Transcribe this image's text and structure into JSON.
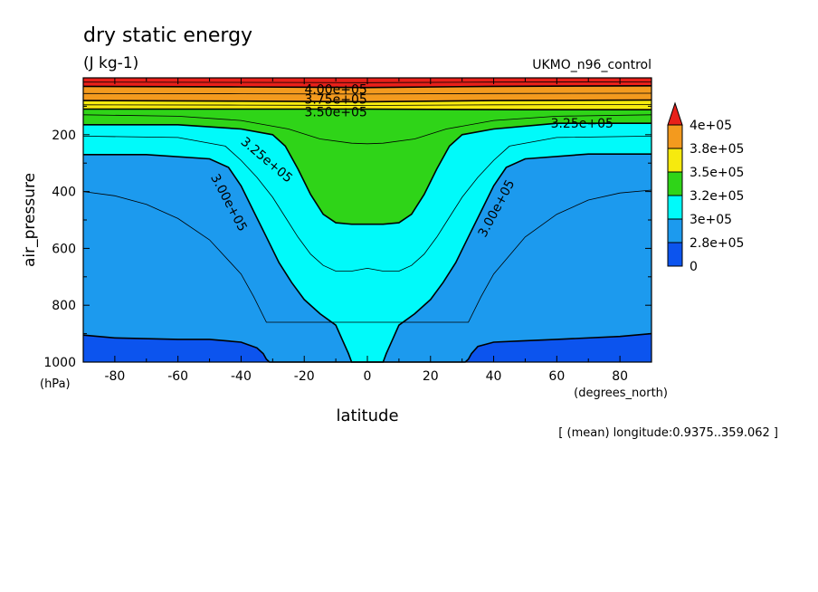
{
  "chart_data": {
    "type": "heatmap",
    "title": "dry static energy",
    "units": "(J kg-1)",
    "run_label": "UKMO_n96_control",
    "xlabel": "latitude",
    "x_units": "(degrees_north)",
    "ylabel": "air_pressure",
    "y_units": "(hPa)",
    "footer": "[ (mean) longitude:0.9375..359.062 ]",
    "xlim": [
      -90,
      90
    ],
    "ylim": [
      1000,
      0
    ],
    "y_inverted": true,
    "x_ticks": [
      -80,
      -60,
      -40,
      -20,
      0,
      20,
      40,
      60,
      80
    ],
    "y_ticks": [
      200,
      400,
      600,
      800,
      1000
    ],
    "colorbar": {
      "labels": [
        "4e+05",
        "3.8e+05",
        "3.5e+05",
        "3.2e+05",
        "3e+05",
        "2.8e+05",
        "0"
      ],
      "colors": [
        "#e8201a",
        "#f39a1e",
        "#f6ea0e",
        "#2fd418",
        "#00fafa",
        "#1c9aee",
        "#0c54ee"
      ]
    },
    "levels": [
      {
        "level": 275000,
        "color": "#1c9aee"
      },
      {
        "level": 300000,
        "color": "#00fafa"
      },
      {
        "level": 325000,
        "color": "#2fd418"
      },
      {
        "level": 350000,
        "color": "#f6ea0e"
      },
      {
        "level": 375000,
        "color": "#f39a1e"
      },
      {
        "level": 400000,
        "color": "#e8201a"
      }
    ],
    "contour_labels": [
      "4.00e+05",
      "3.75e+05",
      "3.50e+05",
      "3.25e+05",
      "3.25e+05",
      "3.00e+05",
      "3.00e+05"
    ],
    "level_boundaries": [
      {
        "level": 275000,
        "lat": [
          -90,
          -80,
          -60,
          -50,
          -40,
          -35,
          -33,
          -32,
          -31,
          31,
          32,
          33,
          35,
          40,
          50,
          60,
          80,
          90
        ],
        "p": [
          905,
          915,
          920,
          920,
          930,
          950,
          970,
          990,
          1000,
          1000,
          990,
          970,
          945,
          930,
          925,
          920,
          910,
          900
        ]
      },
      {
        "level": 300000,
        "lat": [
          -90,
          -70,
          -50,
          -44,
          -40,
          -36,
          -32,
          -28,
          -24,
          -20,
          -15,
          -10,
          -8,
          -6,
          -5,
          5,
          6,
          8,
          10,
          15,
          20,
          24,
          28,
          32,
          36,
          40,
          44,
          50,
          70,
          90
        ],
        "p": [
          270,
          270,
          285,
          315,
          380,
          470,
          560,
          650,
          720,
          780,
          830,
          870,
          920,
          970,
          1000,
          1000,
          970,
          920,
          870,
          830,
          780,
          720,
          650,
          560,
          470,
          380,
          315,
          285,
          268,
          268
        ]
      },
      {
        "level": 325000,
        "lat": [
          -90,
          -60,
          -40,
          -30,
          -26,
          -22,
          -18,
          -14,
          -10,
          -5,
          0,
          5,
          10,
          14,
          18,
          22,
          26,
          30,
          40,
          60,
          90
        ],
        "p": [
          165,
          165,
          180,
          200,
          240,
          320,
          410,
          480,
          510,
          515,
          515,
          515,
          510,
          480,
          410,
          320,
          240,
          200,
          180,
          160,
          160
        ]
      },
      {
        "level": 350000,
        "lat": [
          -90,
          -50,
          0,
          50,
          90
        ],
        "p": [
          110,
          110,
          110,
          112,
          112
        ]
      },
      {
        "level": 375000,
        "lat": [
          -90,
          -40,
          0,
          40,
          90
        ],
        "p": [
          80,
          82,
          84,
          80,
          78
        ]
      },
      {
        "level": 400000,
        "lat": [
          -90,
          -40,
          0,
          40,
          90
        ],
        "p": [
          30,
          32,
          34,
          30,
          28
        ]
      }
    ],
    "extra_contours": [
      {
        "lat": [
          -90,
          -80,
          -70,
          -60,
          -50,
          -40,
          -36,
          -32,
          32,
          36,
          40,
          50,
          60,
          70,
          80,
          90
        ],
        "p": [
          400,
          415,
          445,
          495,
          570,
          690,
          770,
          860,
          860,
          770,
          690,
          560,
          480,
          430,
          405,
          395
        ]
      },
      {
        "lat": [
          -90,
          -60,
          -45,
          -40,
          -35,
          -30,
          -26,
          -22,
          -18,
          -14,
          -10,
          -5,
          0,
          5,
          10,
          14,
          18,
          22,
          26,
          30,
          35,
          40,
          45,
          60,
          90
        ],
        "p": [
          205,
          210,
          240,
          290,
          350,
          420,
          490,
          560,
          620,
          660,
          680,
          680,
          670,
          680,
          680,
          660,
          620,
          560,
          490,
          420,
          350,
          290,
          240,
          210,
          205
        ]
      },
      {
        "lat": [
          -90,
          -60,
          -40,
          -25,
          -15,
          -5,
          0,
          5,
          15,
          25,
          40,
          60,
          90
        ],
        "p": [
          130,
          135,
          150,
          180,
          215,
          230,
          232,
          230,
          215,
          180,
          150,
          135,
          130
        ]
      },
      {
        "lat": [
          -90,
          -40,
          0,
          40,
          90
        ],
        "p": [
          95,
          96,
          97,
          95,
          94
        ]
      },
      {
        "lat": [
          -90,
          -40,
          0,
          40,
          90
        ],
        "p": [
          55,
          56,
          57,
          55,
          54
        ]
      },
      {
        "lat": [
          -90,
          -40,
          0,
          40,
          90
        ],
        "p": [
          15,
          16,
          17,
          15,
          14
        ]
      }
    ]
  }
}
